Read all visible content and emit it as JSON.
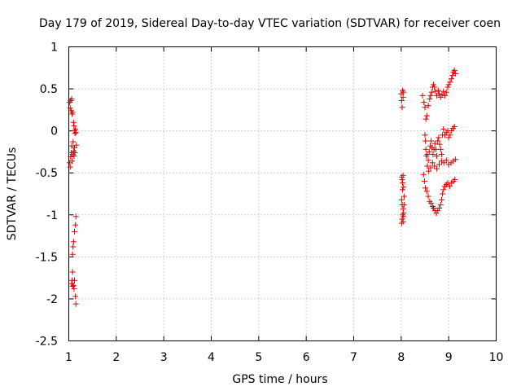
{
  "chart_data": {
    "type": "scatter",
    "title": "Day 179 of 2019, Sidereal Day-to-day VTEC variation (SDTVAR) for receiver coen",
    "xlabel": "GPS time / hours",
    "ylabel": "SDTVAR / TECUs",
    "xlim": [
      1,
      10
    ],
    "ylim": [
      -2.5,
      1
    ],
    "xticks": [
      1,
      2,
      3,
      4,
      5,
      6,
      7,
      8,
      9,
      10
    ],
    "yticks": [
      1,
      0.5,
      0,
      -0.5,
      -1,
      -1.5,
      -2,
      -2.5
    ],
    "xtick_labels": [
      "1",
      "2",
      "3",
      "4",
      "5",
      "6",
      "7",
      "8",
      "9",
      "10"
    ],
    "ytick_labels": [
      "1",
      "0.5",
      "0",
      "-0.5",
      "-1",
      "-1.5",
      "-2",
      "-2.5"
    ],
    "grid": true,
    "marker": "+",
    "marker_color": "#e00000",
    "series": [
      {
        "name": "SDTVAR",
        "points": [
          [
            1.02,
            0.34
          ],
          [
            1.03,
            0.27
          ],
          [
            1.04,
            0.36
          ],
          [
            1.05,
            0.24
          ],
          [
            1.06,
            0.38
          ],
          [
            1.07,
            0.2
          ],
          [
            1.08,
            0.22
          ],
          [
            1.1,
            0.1
          ],
          [
            1.11,
            0.06
          ],
          [
            1.12,
            0.0
          ],
          [
            1.13,
            -0.03
          ],
          [
            1.14,
            0.02
          ],
          [
            1.15,
            -0.02
          ],
          [
            1.16,
            -0.17
          ],
          [
            1.02,
            -0.38
          ],
          [
            1.03,
            -0.43
          ],
          [
            1.04,
            -0.31
          ],
          [
            1.05,
            -0.26
          ],
          [
            1.06,
            -0.18
          ],
          [
            1.07,
            -0.36
          ],
          [
            1.08,
            -0.28
          ],
          [
            1.09,
            -0.13
          ],
          [
            1.1,
            -0.24
          ],
          [
            1.11,
            -0.3
          ],
          [
            1.12,
            -0.2
          ],
          [
            1.13,
            -0.26
          ],
          [
            1.15,
            -1.02
          ],
          [
            1.14,
            -1.12
          ],
          [
            1.12,
            -1.2
          ],
          [
            1.1,
            -1.32
          ],
          [
            1.09,
            -1.38
          ],
          [
            1.08,
            -1.47
          ],
          [
            1.08,
            -1.68
          ],
          [
            1.07,
            -1.78
          ],
          [
            1.06,
            -1.82
          ],
          [
            1.08,
            -1.85
          ],
          [
            1.1,
            -1.84
          ],
          [
            1.12,
            -1.78
          ],
          [
            1.14,
            -1.97
          ],
          [
            1.15,
            -2.06
          ],
          [
            1.11,
            -1.88
          ],
          [
            8.0,
            0.44
          ],
          [
            8.01,
            0.36
          ],
          [
            8.02,
            0.28
          ],
          [
            8.03,
            0.48
          ],
          [
            8.04,
            0.4
          ],
          [
            8.05,
            0.46
          ],
          [
            8.01,
            -0.55
          ],
          [
            8.02,
            -0.58
          ],
          [
            8.03,
            -0.62
          ],
          [
            8.04,
            -0.53
          ],
          [
            8.05,
            -0.67
          ],
          [
            8.03,
            -0.7
          ],
          [
            8.01,
            -0.82
          ],
          [
            8.02,
            -0.88
          ],
          [
            8.04,
            -0.93
          ],
          [
            8.05,
            -0.98
          ],
          [
            8.06,
            -0.78
          ],
          [
            8.03,
            -1.0
          ],
          [
            8.02,
            -1.05
          ],
          [
            8.04,
            -1.08
          ],
          [
            8.01,
            -1.1
          ],
          [
            8.05,
            -1.02
          ],
          [
            8.06,
            -0.88
          ],
          [
            8.45,
            0.42
          ],
          [
            8.48,
            0.34
          ],
          [
            8.5,
            0.28
          ],
          [
            8.52,
            0.14
          ],
          [
            8.54,
            0.18
          ],
          [
            8.57,
            0.3
          ],
          [
            8.6,
            0.38
          ],
          [
            8.62,
            0.42
          ],
          [
            8.64,
            0.46
          ],
          [
            8.66,
            0.52
          ],
          [
            8.68,
            0.55
          ],
          [
            8.7,
            0.52
          ],
          [
            8.72,
            0.47
          ],
          [
            8.75,
            0.42
          ],
          [
            8.78,
            0.48
          ],
          [
            8.8,
            0.44
          ],
          [
            8.83,
            0.4
          ],
          [
            8.86,
            0.43
          ],
          [
            8.89,
            0.47
          ],
          [
            8.92,
            0.42
          ],
          [
            8.95,
            0.46
          ],
          [
            8.98,
            0.52
          ],
          [
            9.0,
            0.55
          ],
          [
            9.03,
            0.58
          ],
          [
            9.06,
            0.62
          ],
          [
            9.08,
            0.66
          ],
          [
            9.1,
            0.7
          ],
          [
            9.12,
            0.72
          ],
          [
            9.14,
            0.68
          ],
          [
            8.5,
            -0.05
          ],
          [
            8.51,
            -0.12
          ],
          [
            8.52,
            -0.22
          ],
          [
            8.53,
            -0.3
          ],
          [
            8.55,
            -0.28
          ],
          [
            8.57,
            -0.35
          ],
          [
            8.59,
            -0.25
          ],
          [
            8.61,
            -0.18
          ],
          [
            8.63,
            -0.12
          ],
          [
            8.65,
            -0.2
          ],
          [
            8.67,
            -0.28
          ],
          [
            8.69,
            -0.22
          ],
          [
            8.71,
            -0.15
          ],
          [
            8.73,
            -0.22
          ],
          [
            8.75,
            -0.3
          ],
          [
            8.77,
            -0.12
          ],
          [
            8.79,
            -0.08
          ],
          [
            8.81,
            -0.16
          ],
          [
            8.83,
            -0.22
          ],
          [
            8.85,
            -0.28
          ],
          [
            8.87,
            -0.05
          ],
          [
            8.89,
            0.02
          ],
          [
            8.92,
            -0.05
          ],
          [
            8.95,
            -0.02
          ],
          [
            8.98,
            0.0
          ],
          [
            9.0,
            -0.08
          ],
          [
            9.03,
            -0.05
          ],
          [
            9.06,
            0.0
          ],
          [
            9.09,
            0.03
          ],
          [
            9.12,
            0.05
          ],
          [
            8.55,
            -0.42
          ],
          [
            8.58,
            -0.48
          ],
          [
            8.62,
            -0.44
          ],
          [
            8.66,
            -0.38
          ],
          [
            8.7,
            -0.42
          ],
          [
            8.75,
            -0.45
          ],
          [
            8.8,
            -0.4
          ],
          [
            8.85,
            -0.36
          ],
          [
            8.9,
            -0.38
          ],
          [
            8.95,
            -0.35
          ],
          [
            9.0,
            -0.4
          ],
          [
            9.05,
            -0.38
          ],
          [
            9.1,
            -0.36
          ],
          [
            9.14,
            -0.34
          ],
          [
            8.98,
            -0.62
          ],
          [
            9.02,
            -0.66
          ],
          [
            9.06,
            -0.62
          ],
          [
            9.1,
            -0.6
          ],
          [
            9.13,
            -0.58
          ],
          [
            8.47,
            -0.52
          ],
          [
            8.49,
            -0.6
          ],
          [
            8.51,
            -0.68
          ],
          [
            8.54,
            -0.72
          ],
          [
            8.57,
            -0.78
          ],
          [
            8.6,
            -0.84
          ],
          [
            8.63,
            -0.86
          ],
          [
            8.66,
            -0.9
          ],
          [
            8.68,
            -0.92
          ],
          [
            8.71,
            -0.95
          ],
          [
            8.74,
            -0.98
          ],
          [
            8.77,
            -0.95
          ],
          [
            8.8,
            -0.92
          ],
          [
            8.83,
            -0.88
          ],
          [
            8.85,
            -0.82
          ],
          [
            8.87,
            -0.75
          ],
          [
            8.89,
            -0.7
          ],
          [
            8.92,
            -0.66
          ],
          [
            8.95,
            -0.64
          ]
        ]
      }
    ]
  }
}
